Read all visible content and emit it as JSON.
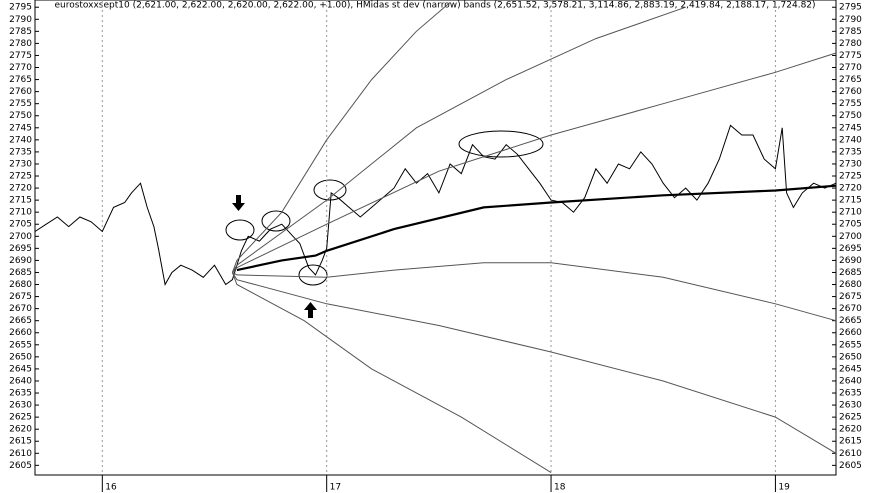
{
  "chart_data": {
    "type": "line",
    "title": "eurostoxxsept10 (2,621.00, 2,622.00, 2,620.00, 2,622.00, +1.00), HMidas st dev (narrow) bands (2,651.52, 3,578.21, 3,114.86, 2,883.19, 2,419.84, 2,188.17, 1,724.82)",
    "xlim": [
      15.7,
      19.27
    ],
    "xticks": [
      16,
      17,
      18,
      19
    ],
    "ylim": [
      2601,
      2798
    ],
    "yticks": [
      2605,
      2610,
      2615,
      2620,
      2625,
      2630,
      2635,
      2640,
      2645,
      2650,
      2655,
      2660,
      2665,
      2670,
      2675,
      2680,
      2685,
      2690,
      2695,
      2700,
      2705,
      2710,
      2715,
      2720,
      2725,
      2730,
      2735,
      2740,
      2745,
      2750,
      2755,
      2760,
      2765,
      2770,
      2775,
      2780,
      2785,
      2790,
      2795
    ],
    "grid": true,
    "series": [
      {
        "color": "#000000",
        "line_width": 1,
        "x": [
          15.7,
          15.75,
          15.8,
          15.85,
          15.9,
          15.95,
          16.0,
          16.05,
          16.1,
          16.13,
          16.17,
          16.2,
          16.23,
          16.25,
          16.28,
          16.31,
          16.35,
          16.4,
          16.45,
          16.5,
          16.55,
          16.58,
          16.62,
          16.65,
          16.7,
          16.75,
          16.8,
          16.85,
          16.88,
          16.92,
          16.95,
          16.98,
          17.0,
          17.02,
          17.05,
          17.1,
          17.15,
          17.2,
          17.25,
          17.3,
          17.35,
          17.4,
          17.45,
          17.5,
          17.55,
          17.6,
          17.65,
          17.7,
          17.75,
          17.8,
          17.85,
          17.9,
          17.95,
          18.0,
          18.05,
          18.1,
          18.15,
          18.2,
          18.25,
          18.3,
          18.35,
          18.4,
          18.45,
          18.5,
          18.55,
          18.6,
          18.65,
          18.7,
          18.75,
          18.8,
          18.85,
          18.9,
          18.95,
          19.0,
          19.03,
          19.05,
          19.08,
          19.12,
          19.17,
          19.22,
          19.27
        ],
        "values": [
          2702,
          2705,
          2708,
          2704,
          2708,
          2706,
          2702,
          2712,
          2714,
          2718,
          2722,
          2712,
          2704,
          2695,
          2680,
          2685,
          2688,
          2686,
          2683,
          2688,
          2680,
          2682,
          2694,
          2700,
          2698,
          2703,
          2705,
          2700,
          2697,
          2687,
          2684,
          2690,
          2695,
          2718,
          2716,
          2712,
          2708,
          2712,
          2716,
          2720,
          2728,
          2722,
          2726,
          2718,
          2730,
          2726,
          2738,
          2733,
          2732,
          2738,
          2734,
          2728,
          2722,
          2715,
          2714,
          2710,
          2716,
          2728,
          2722,
          2730,
          2728,
          2735,
          2730,
          2722,
          2716,
          2720,
          2715,
          2722,
          2732,
          2746,
          2742,
          2742,
          2732,
          2728,
          2745,
          2718,
          2712,
          2718,
          2722,
          2720,
          2722
        ]
      },
      {
        "color": "#000000",
        "line_width": 2.2,
        "x": [
          16.6,
          16.8,
          16.95,
          17.0,
          17.3,
          17.7,
          18.0,
          18.5,
          19.0,
          19.27
        ],
        "values": [
          2686,
          2690,
          2692,
          2694,
          2703,
          2712,
          2714,
          2717,
          2719,
          2721
        ]
      },
      {
        "color": "#555555",
        "line_width": 1,
        "x": [
          16.58,
          16.6,
          16.8,
          17.0,
          17.2,
          17.4,
          17.55
        ],
        "values": [
          2685,
          2690,
          2710,
          2740,
          2765,
          2785,
          2797
        ]
      },
      {
        "color": "#555555",
        "line_width": 1,
        "x": [
          16.58,
          16.6,
          17.0,
          17.4,
          17.8,
          18.2,
          18.6
        ],
        "values": [
          2685,
          2688,
          2715,
          2745,
          2765,
          2782,
          2795
        ]
      },
      {
        "color": "#555555",
        "line_width": 1,
        "x": [
          16.58,
          16.6,
          17.0,
          17.5,
          18.0,
          18.5,
          19.0,
          19.27
        ],
        "values": [
          2685,
          2687,
          2705,
          2727,
          2742,
          2755,
          2768,
          2776
        ]
      },
      {
        "color": "#555555",
        "line_width": 1,
        "x": [
          16.58,
          16.6,
          17.0,
          17.3,
          17.7,
          18.0,
          18.5,
          19.0,
          19.27
        ],
        "values": [
          2685,
          2684,
          2683,
          2686,
          2689,
          2689,
          2683,
          2672,
          2665
        ]
      },
      {
        "color": "#555555",
        "line_width": 1,
        "x": [
          16.58,
          16.6,
          17.0,
          17.5,
          18.0,
          18.5,
          19.0,
          19.27
        ],
        "values": [
          2685,
          2682,
          2672,
          2663,
          2652,
          2640,
          2625,
          2610
        ]
      },
      {
        "color": "#555555",
        "line_width": 1,
        "x": [
          16.58,
          16.6,
          16.9,
          17.2,
          17.6,
          18.0
        ],
        "values": [
          2685,
          2680,
          2665,
          2645,
          2625,
          2602
        ]
      }
    ]
  }
}
